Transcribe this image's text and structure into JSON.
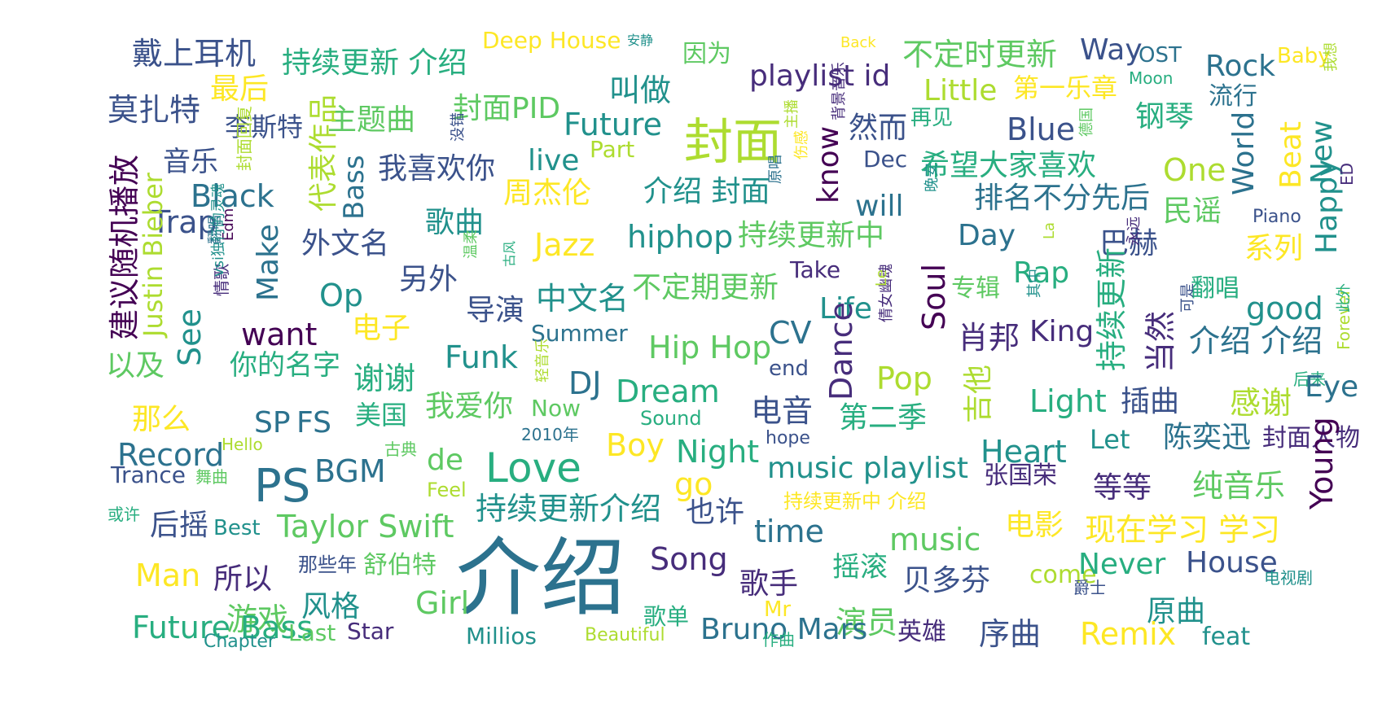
{
  "title": "Word cloud",
  "palette": [
    "#440154",
    "#472d7b",
    "#3b528b",
    "#2c728e",
    "#21918c",
    "#28ae80",
    "#5ec962",
    "#addc30",
    "#fde725"
  ],
  "words": [
    {
      "text": "介绍",
      "c": 3
    },
    {
      "text": "封面",
      "c": 7
    },
    {
      "text": "PS",
      "c": 3
    },
    {
      "text": "Love",
      "c": 5
    },
    {
      "text": "戴上耳机",
      "c": 2
    },
    {
      "text": "持续更新 介绍",
      "c": 5
    },
    {
      "text": "Deep House",
      "c": 8
    },
    {
      "text": "安静",
      "c": 4
    },
    {
      "text": "因为",
      "c": 6
    },
    {
      "text": "Back",
      "c": 8
    },
    {
      "text": "不定时更新",
      "c": 6
    },
    {
      "text": "Way",
      "c": 2
    },
    {
      "text": "OST",
      "c": 3
    },
    {
      "text": "Rock",
      "c": 3
    },
    {
      "text": "Baby",
      "c": 8
    },
    {
      "text": "最后",
      "c": 8
    },
    {
      "text": "playlist id",
      "c": 1
    },
    {
      "text": "叫做",
      "c": 4
    },
    {
      "text": "Little",
      "c": 7
    },
    {
      "text": "第一乐章",
      "c": 8
    },
    {
      "text": "Moon",
      "c": 5
    },
    {
      "text": "流行",
      "c": 3
    },
    {
      "text": "莫扎特",
      "c": 2
    },
    {
      "text": "主题曲",
      "c": 6
    },
    {
      "text": "封面PID",
      "c": 6
    },
    {
      "text": "李斯特",
      "c": 2
    },
    {
      "text": "Future",
      "c": 4
    },
    {
      "text": "然而",
      "c": 2
    },
    {
      "text": "再见",
      "c": 5
    },
    {
      "text": "Blue",
      "c": 2
    },
    {
      "text": "钢琴",
      "c": 5
    },
    {
      "text": "音乐",
      "c": 2
    },
    {
      "text": "Part",
      "c": 7
    },
    {
      "text": "live",
      "c": 4
    },
    {
      "text": "我喜欢你",
      "c": 2
    },
    {
      "text": "Dec",
      "c": 2
    },
    {
      "text": "希望大家喜欢",
      "c": 5
    },
    {
      "text": "One",
      "c": 7
    },
    {
      "text": "Black",
      "c": 3
    },
    {
      "text": "周杰伦",
      "c": 8
    },
    {
      "text": "介绍 封面",
      "c": 4
    },
    {
      "text": "will",
      "c": 3
    },
    {
      "text": "排名不分先后",
      "c": 3
    },
    {
      "text": "民谣",
      "c": 6
    },
    {
      "text": "Trap",
      "c": 2
    },
    {
      "text": "歌曲",
      "c": 4
    },
    {
      "text": "hiphop",
      "c": 4
    },
    {
      "text": "持续更新中",
      "c": 6
    },
    {
      "text": "Day",
      "c": 3
    },
    {
      "text": "巴赫",
      "c": 2
    },
    {
      "text": "Piano",
      "c": 2
    },
    {
      "text": "外文名",
      "c": 2
    },
    {
      "text": "Jazz",
      "c": 8
    },
    {
      "text": "系列",
      "c": 8
    },
    {
      "text": "另外",
      "c": 2
    },
    {
      "text": "Rap",
      "c": 5
    },
    {
      "text": "Take",
      "c": 1
    },
    {
      "text": "专辑",
      "c": 6
    },
    {
      "text": "Op",
      "c": 4
    },
    {
      "text": "中文名",
      "c": 4
    },
    {
      "text": "不定期更新",
      "c": 6
    },
    {
      "text": "导演",
      "c": 2
    },
    {
      "text": "Life",
      "c": 4
    },
    {
      "text": "good",
      "c": 4
    },
    {
      "text": "翻唱",
      "c": 5
    },
    {
      "text": "want",
      "c": 0
    },
    {
      "text": "电子",
      "c": 8
    },
    {
      "text": "Summer",
      "c": 3
    },
    {
      "text": "CV",
      "c": 3
    },
    {
      "text": "肖邦",
      "c": 1
    },
    {
      "text": "King",
      "c": 1
    },
    {
      "text": "介绍 介绍",
      "c": 3
    },
    {
      "text": "以及",
      "c": 6
    },
    {
      "text": "你的名字",
      "c": 5
    },
    {
      "text": "Funk",
      "c": 4
    },
    {
      "text": "Hip Hop",
      "c": 6
    },
    {
      "text": "end",
      "c": 2
    },
    {
      "text": "谢谢",
      "c": 5
    },
    {
      "text": "后来",
      "c": 5
    },
    {
      "text": "DJ",
      "c": 3
    },
    {
      "text": "Dream",
      "c": 5
    },
    {
      "text": "Pop",
      "c": 7
    },
    {
      "text": "Light",
      "c": 5
    },
    {
      "text": "插曲",
      "c": 2
    },
    {
      "text": "感谢",
      "c": 7
    },
    {
      "text": "Eye",
      "c": 3
    },
    {
      "text": "那么",
      "c": 8
    },
    {
      "text": "我爱你",
      "c": 6
    },
    {
      "text": "Now",
      "c": 6
    },
    {
      "text": "Sound",
      "c": 5
    },
    {
      "text": "电音",
      "c": 2
    },
    {
      "text": "第二季",
      "c": 5
    },
    {
      "text": "SP",
      "c": 3
    },
    {
      "text": "FS",
      "c": 3
    },
    {
      "text": "美国",
      "c": 5
    },
    {
      "text": "2010年",
      "c": 3
    },
    {
      "text": "Boy",
      "c": 8
    },
    {
      "text": "Night",
      "c": 5
    },
    {
      "text": "Heart",
      "c": 4
    },
    {
      "text": "陈奕迅",
      "c": 3
    },
    {
      "text": "封面人物",
      "c": 1
    },
    {
      "text": "Hello",
      "c": 7
    },
    {
      "text": "古典",
      "c": 6
    },
    {
      "text": "hope",
      "c": 2
    },
    {
      "text": "Let",
      "c": 4
    },
    {
      "text": "Record",
      "c": 3
    },
    {
      "text": "BGM",
      "c": 3
    },
    {
      "text": "de",
      "c": 6
    },
    {
      "text": "music playlist",
      "c": 4
    },
    {
      "text": "张国荣",
      "c": 1
    },
    {
      "text": "等等",
      "c": 1
    },
    {
      "text": "纯音乐",
      "c": 6
    },
    {
      "text": "Trance",
      "c": 2
    },
    {
      "text": "舞曲",
      "c": 6
    },
    {
      "text": "摇滚",
      "c": 5
    },
    {
      "text": "Feel",
      "c": 7
    },
    {
      "text": "持续更新介绍",
      "c": 4
    },
    {
      "text": "go",
      "c": 8
    },
    {
      "text": "持续更新中 介绍",
      "c": 8
    },
    {
      "text": "也许",
      "c": 2
    },
    {
      "text": "或许",
      "c": 5
    },
    {
      "text": "后摇",
      "c": 2
    },
    {
      "text": "Best",
      "c": 4
    },
    {
      "text": "Taylor Swift",
      "c": 6
    },
    {
      "text": "time",
      "c": 3
    },
    {
      "text": "music",
      "c": 6
    },
    {
      "text": "电影",
      "c": 8
    },
    {
      "text": "现在学习 学习",
      "c": 8
    },
    {
      "text": "Man",
      "c": 8
    },
    {
      "text": "所以",
      "c": 1
    },
    {
      "text": "那些年",
      "c": 2
    },
    {
      "text": "舒伯特",
      "c": 6
    },
    {
      "text": "Song",
      "c": 1
    },
    {
      "text": "歌手",
      "c": 1
    },
    {
      "text": "贝多芬",
      "c": 2
    },
    {
      "text": "come",
      "c": 7
    },
    {
      "text": "Never",
      "c": 5
    },
    {
      "text": "House",
      "c": 2
    },
    {
      "text": "爵士",
      "c": 2
    },
    {
      "text": "电视剧",
      "c": 4
    },
    {
      "text": "游戏",
      "c": 6
    },
    {
      "text": "风格",
      "c": 4
    },
    {
      "text": "Girl",
      "c": 6
    },
    {
      "text": "Mr",
      "c": 8
    },
    {
      "text": "演员",
      "c": 6
    },
    {
      "text": "原曲",
      "c": 4
    },
    {
      "text": "Future Bass",
      "c": 5
    },
    {
      "text": "歌单",
      "c": 5
    },
    {
      "text": "Last",
      "c": 6
    },
    {
      "text": "Star",
      "c": 1
    },
    {
      "text": "Chapter",
      "c": 4
    },
    {
      "text": "Millios",
      "c": 4
    },
    {
      "text": "Beautiful",
      "c": 7
    },
    {
      "text": "Bruno Mars",
      "c": 3
    },
    {
      "text": "作曲",
      "c": 5
    },
    {
      "text": "英雄",
      "c": 1
    },
    {
      "text": "序曲",
      "c": 2
    },
    {
      "text": "Remix",
      "c": 8
    },
    {
      "text": "feat",
      "c": 4
    },
    {
      "text": "建议随机播放",
      "c": 0
    },
    {
      "text": "Justin Bieber",
      "c": 7
    },
    {
      "text": "代表作品",
      "c": 7
    },
    {
      "text": "Bass",
      "c": 3
    },
    {
      "text": "know",
      "c": 0
    },
    {
      "text": "Soul",
      "c": 0
    },
    {
      "text": "World",
      "c": 3
    },
    {
      "text": "Beat",
      "c": 8
    },
    {
      "text": "New",
      "c": 4
    },
    {
      "text": "Happy",
      "c": 4
    },
    {
      "text": "See",
      "c": 4
    },
    {
      "text": "Dance",
      "c": 1
    },
    {
      "text": "吉他",
      "c": 7
    },
    {
      "text": "当然",
      "c": 1
    },
    {
      "text": "持续更新",
      "c": 5
    },
    {
      "text": "Young",
      "c": 0
    },
    {
      "text": "ED",
      "c": 1
    },
    {
      "text": "Forever",
      "c": 7
    },
    {
      "text": "封面回复",
      "c": 7
    },
    {
      "text": "Make",
      "c": 3
    },
    {
      "text": "情歌",
      "c": 1
    },
    {
      "text": "Edm",
      "c": 0
    },
    {
      "text": "背景音乐",
      "c": 1
    },
    {
      "text": "伤感",
      "c": 8
    },
    {
      "text": "La",
      "c": 7
    },
    {
      "text": "永远",
      "c": 1
    },
    {
      "text": "其中",
      "c": 4
    },
    {
      "text": "倩女幽魂",
      "c": 1
    },
    {
      "text": "Le",
      "c": 7
    },
    {
      "text": "晚安",
      "c": 4
    },
    {
      "text": "德国",
      "c": 6
    },
    {
      "text": "可是",
      "c": 2
    },
    {
      "text": "没错",
      "c": 2
    },
    {
      "text": "翻唱",
      "c": 3
    },
    {
      "text": "此外",
      "c": 5
    },
    {
      "text": "主播",
      "c": 7
    },
    {
      "text": "轻音乐",
      "c": 7
    },
    {
      "text": "原唱",
      "c": 3
    },
    {
      "text": "古风",
      "c": 5
    },
    {
      "text": "温柔",
      "c": 6
    },
    {
      "text": "vsi独行的灵魂",
      "c": 4
    },
    {
      "text": "我想",
      "c": 7
    },
    {
      "text": "微博",
      "c": 8
    },
    {
      "text": "Ⅲ",
      "c": 7
    }
  ]
}
